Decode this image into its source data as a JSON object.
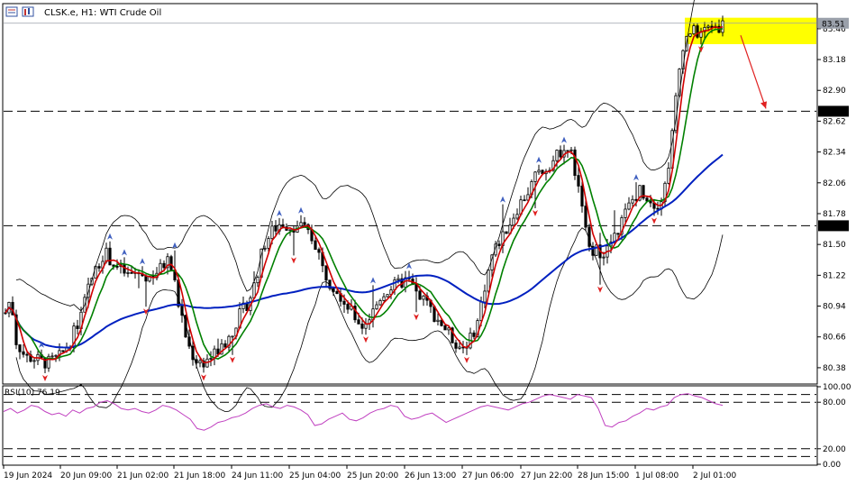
{
  "header": {
    "symbol_title": "CLSK.e, H1:  WTI Crude Oil",
    "rsi_label": "RSI(10) 76.19"
  },
  "icons": [
    "chart-window-icon",
    "chart-type-icon"
  ],
  "colors": {
    "candle": "#000000",
    "ma_fast": "#d00000",
    "ma_mid": "#008000",
    "ma_slow": "#0020c0",
    "bands": "#000000",
    "rsi": "#c040c0",
    "highlight": "#ffff00",
    "arrow_up": "#4060c0",
    "arrow_down": "#e02020",
    "forecast_arrow": "#e02020"
  },
  "price_axis": {
    "ticks": [
      "83.46",
      "83.18",
      "82.90",
      "82.62",
      "82.34",
      "82.06",
      "81.78",
      "81.50",
      "81.22",
      "80.94",
      "80.66",
      "80.38"
    ],
    "current_price": "83.51",
    "levels": [
      "82.71",
      "81.67"
    ]
  },
  "rsi_axis": {
    "ticks": [
      "100.00",
      "80.00",
      "20.00",
      "0.00"
    ],
    "levels": [
      90,
      80,
      20,
      10
    ]
  },
  "time_axis": {
    "labels": [
      "19 Jun 2024",
      "20 Jun 09:00",
      "21 Jun 02:00",
      "21 Jun 18:00",
      "24 Jun 11:00",
      "25 Jun 04:00",
      "25 Jun 20:00",
      "26 Jun 13:00",
      "27 Jun 06:00",
      "27 Jun 22:00",
      "28 Jun 15:00",
      "1 Jul 08:00",
      "2 Jul 01:00"
    ]
  },
  "chart_data": {
    "type": "line",
    "subtype": "candlestick",
    "ylim": [
      80.24,
      83.68
    ],
    "resistance_levels": [
      82.71,
      81.67
    ],
    "highlight_zone": [
      83.32,
      83.56
    ],
    "forecast": "down to 82.71",
    "close_path": [
      [
        0,
        80.7
      ],
      [
        6,
        80.88
      ],
      [
        12,
        81.02
      ],
      [
        18,
        80.62
      ],
      [
        28,
        80.48
      ],
      [
        40,
        80.46
      ],
      [
        52,
        80.42
      ],
      [
        66,
        80.48
      ],
      [
        78,
        80.62
      ],
      [
        90,
        80.86
      ],
      [
        100,
        81.16
      ],
      [
        108,
        81.3
      ],
      [
        116,
        81.44
      ],
      [
        124,
        81.34
      ],
      [
        132,
        81.28
      ],
      [
        142,
        81.22
      ],
      [
        152,
        81.24
      ],
      [
        164,
        81.2
      ],
      [
        176,
        81.26
      ],
      [
        186,
        81.36
      ],
      [
        192,
        81.24
      ],
      [
        200,
        80.88
      ],
      [
        208,
        80.6
      ],
      [
        216,
        80.46
      ],
      [
        224,
        80.42
      ],
      [
        234,
        80.48
      ],
      [
        246,
        80.56
      ],
      [
        256,
        80.68
      ],
      [
        266,
        80.86
      ],
      [
        276,
        80.98
      ],
      [
        284,
        81.18
      ],
      [
        292,
        81.48
      ],
      [
        302,
        81.62
      ],
      [
        312,
        81.7
      ],
      [
        322,
        81.66
      ],
      [
        332,
        81.68
      ],
      [
        342,
        81.6
      ],
      [
        352,
        81.48
      ],
      [
        358,
        81.28
      ],
      [
        366,
        81.16
      ],
      [
        374,
        81.1
      ],
      [
        382,
        80.98
      ],
      [
        392,
        80.86
      ],
      [
        402,
        80.76
      ],
      [
        412,
        80.86
      ],
      [
        422,
        81.02
      ],
      [
        432,
        81.1
      ],
      [
        442,
        81.14
      ],
      [
        452,
        81.18
      ],
      [
        462,
        81.06
      ],
      [
        472,
        80.98
      ],
      [
        482,
        80.86
      ],
      [
        492,
        80.76
      ],
      [
        502,
        80.64
      ],
      [
        512,
        80.56
      ],
      [
        522,
        80.64
      ],
      [
        530,
        80.8
      ],
      [
        538,
        81.12
      ],
      [
        546,
        81.4
      ],
      [
        556,
        81.56
      ],
      [
        566,
        81.7
      ],
      [
        576,
        81.86
      ],
      [
        586,
        81.98
      ],
      [
        596,
        82.14
      ],
      [
        606,
        82.2
      ],
      [
        616,
        82.28
      ],
      [
        626,
        82.4
      ],
      [
        634,
        82.32
      ],
      [
        642,
        82.0
      ],
      [
        650,
        81.62
      ],
      [
        658,
        81.46
      ],
      [
        666,
        81.42
      ],
      [
        674,
        81.46
      ],
      [
        682,
        81.56
      ],
      [
        690,
        81.72
      ],
      [
        700,
        81.88
      ],
      [
        710,
        82.0
      ],
      [
        720,
        81.92
      ],
      [
        728,
        81.86
      ],
      [
        736,
        81.94
      ],
      [
        744,
        82.34
      ],
      [
        752,
        82.98
      ],
      [
        758,
        83.32
      ],
      [
        766,
        83.44
      ],
      [
        774,
        83.42
      ],
      [
        782,
        83.44
      ],
      [
        790,
        83.49
      ],
      [
        798,
        83.48
      ],
      [
        802,
        83.5
      ]
    ],
    "overlays": [
      {
        "name": "MA fast",
        "color": "#d00000"
      },
      {
        "name": "MA mid",
        "color": "#008000"
      },
      {
        "name": "MA slow",
        "color": "#0020c0"
      },
      {
        "name": "Bollinger Bands",
        "color": "#000000"
      }
    ],
    "rsi": {
      "ylim": [
        0,
        100
      ],
      "last": 76.19,
      "values": [
        68,
        72,
        66,
        70,
        76,
        74,
        68,
        64,
        66,
        62,
        70,
        66,
        72,
        74,
        80,
        82,
        78,
        72,
        70,
        72,
        68,
        66,
        70,
        76,
        74,
        70,
        64,
        58,
        46,
        44,
        48,
        54,
        56,
        60,
        62,
        66,
        72,
        76,
        78,
        74,
        72,
        76,
        74,
        70,
        64,
        50,
        52,
        58,
        62,
        66,
        58,
        56,
        60,
        66,
        70,
        72,
        76,
        74,
        62,
        58,
        60,
        64,
        66,
        60,
        54,
        58,
        62,
        66,
        70,
        74,
        76,
        74,
        72,
        70,
        74,
        78,
        80,
        84,
        88,
        90,
        88,
        86,
        84,
        90,
        88,
        86,
        72,
        50,
        48,
        54,
        56,
        62,
        66,
        72,
        70,
        74,
        76,
        86,
        90,
        91,
        88,
        86,
        82,
        78,
        76
      ]
    }
  }
}
